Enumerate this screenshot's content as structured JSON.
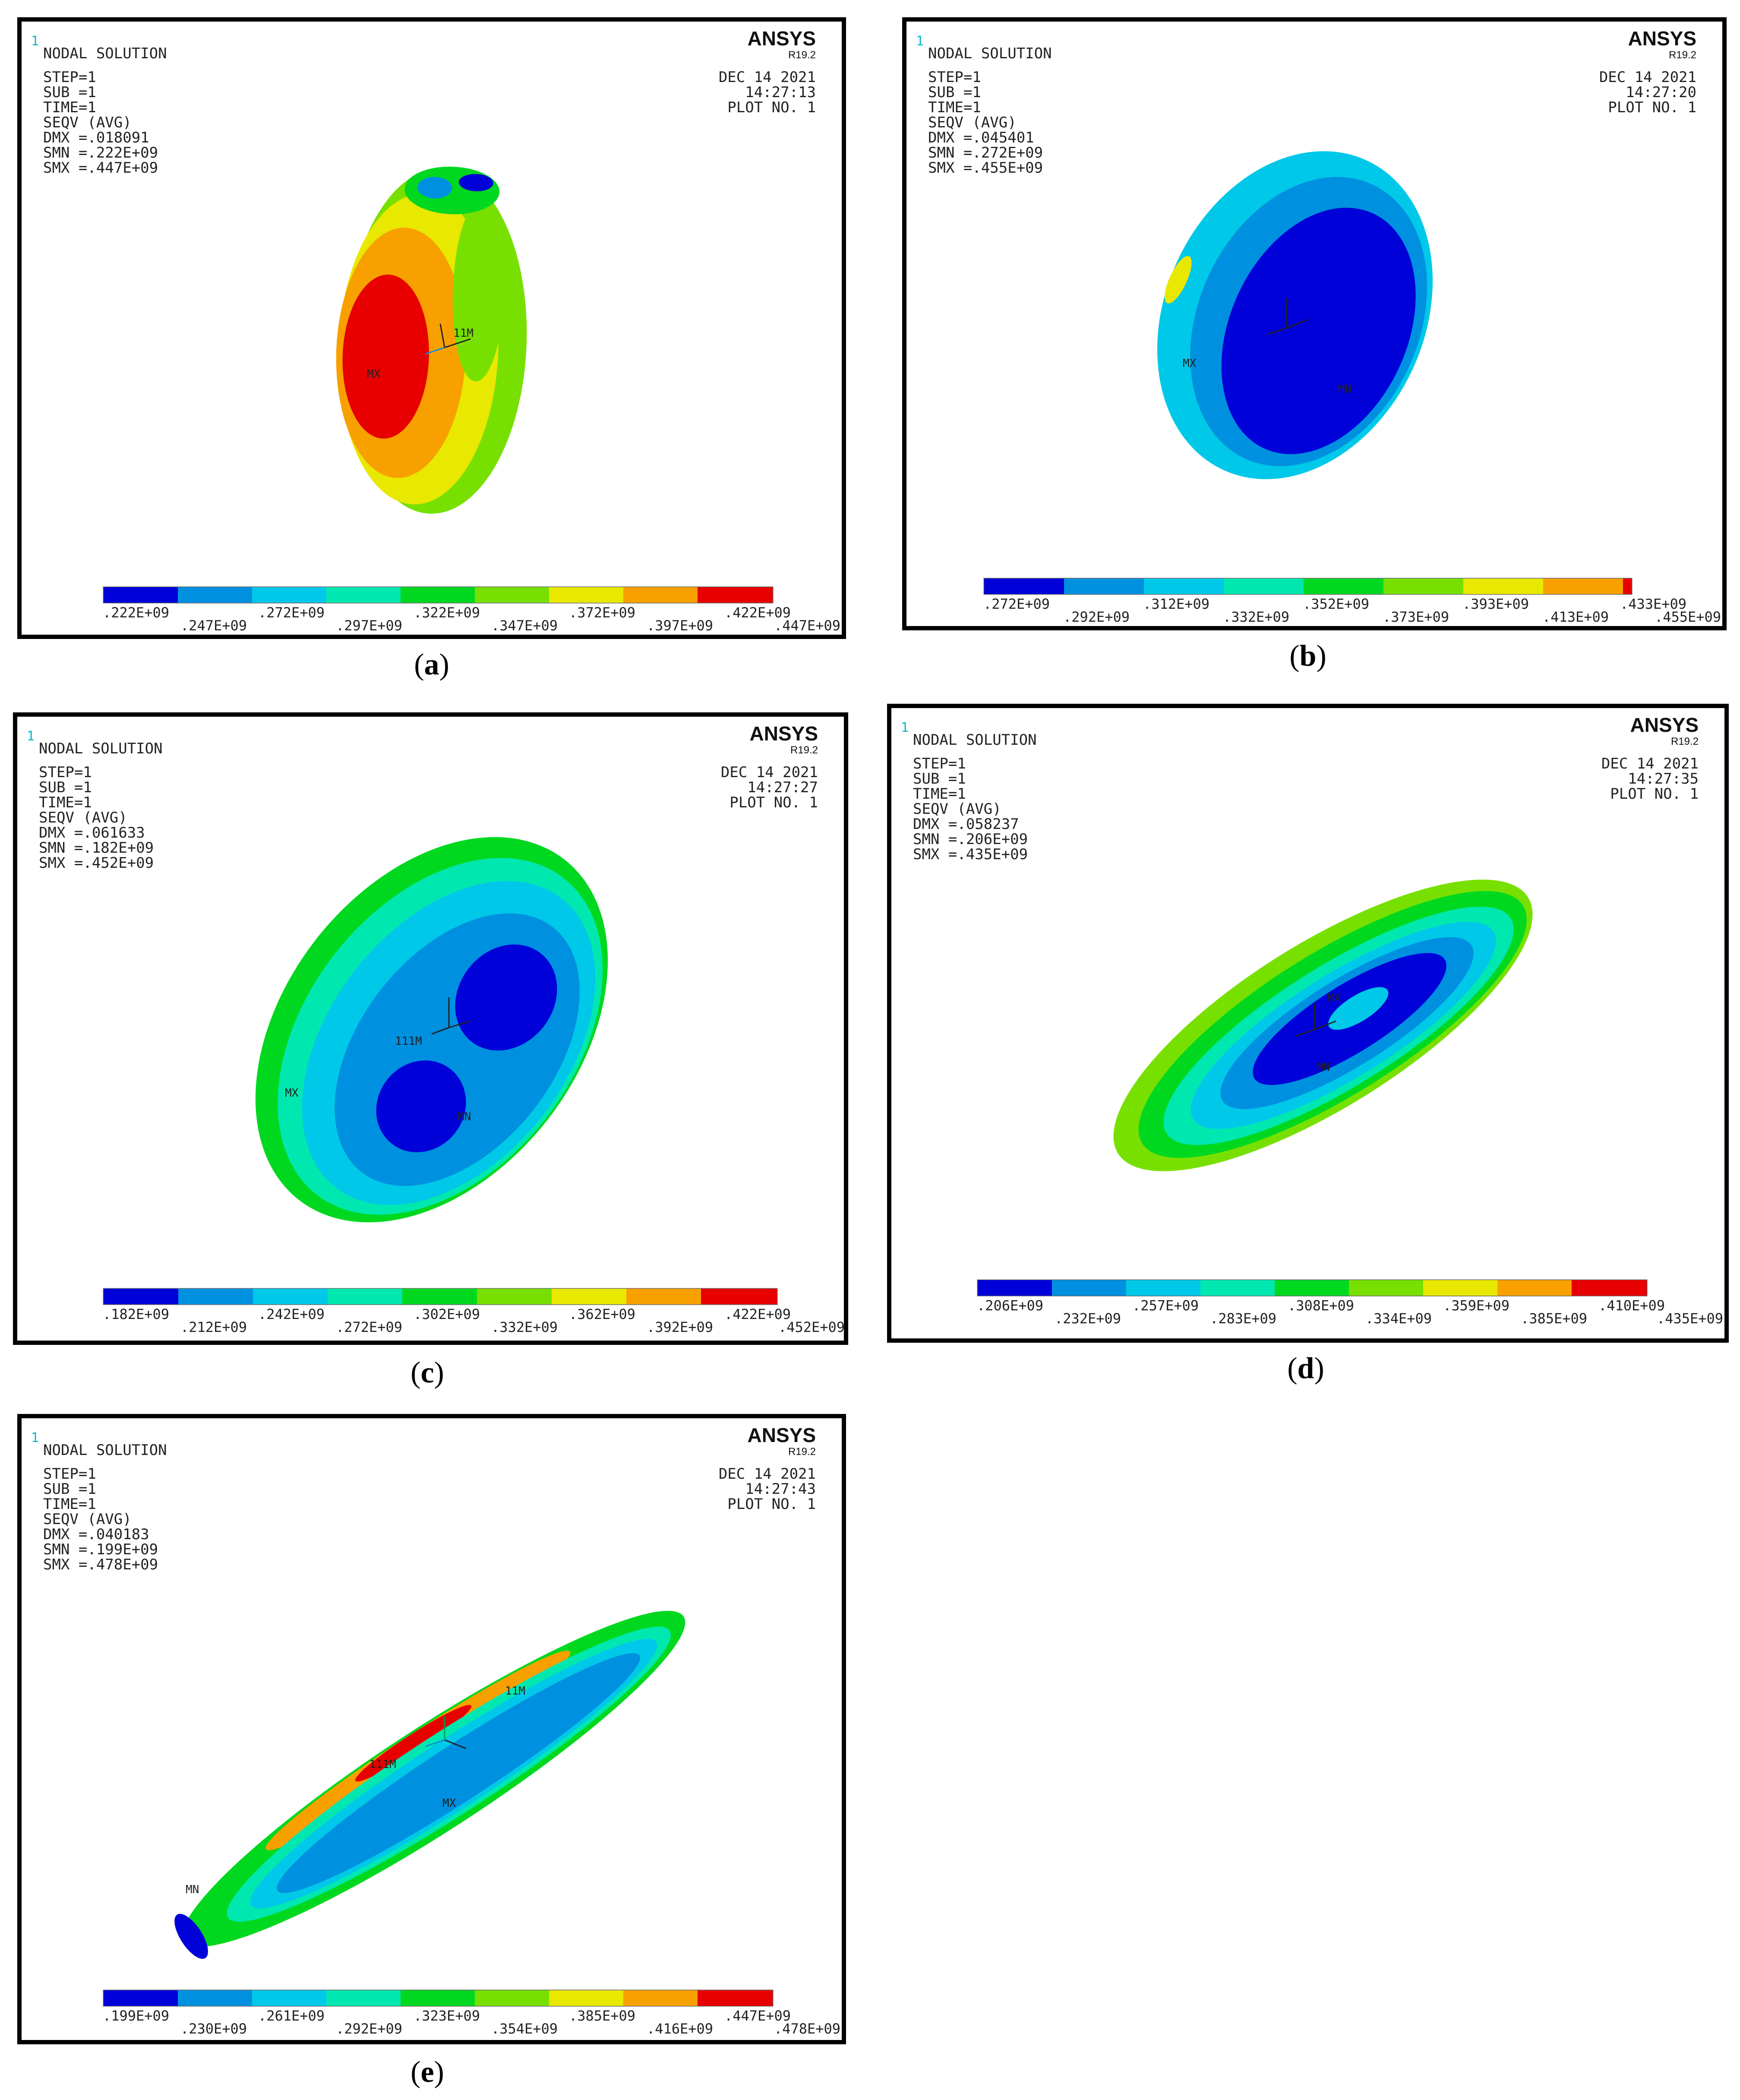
{
  "panels": [
    {
      "id": "a",
      "caption": "a",
      "header": {
        "title": "NODAL SOLUTION",
        "step": "STEP=1",
        "sub": "SUB =1",
        "time": "TIME=1",
        "seqv": "SEQV     (AVG)",
        "dmx": "DMX =.018091",
        "smn": "SMN =.222E+09",
        "smx": "SMX =.447E+09"
      },
      "brand": "ANSYS",
      "version": "R19.2",
      "date": "DEC 14 2021",
      "clock": "14:27:13",
      "plot_no": "PLOT NO.   1",
      "marker_labels": [
        "MX",
        "11M"
      ],
      "legend": [
        ".222E+09",
        ".247E+09",
        ".272E+09",
        ".297E+09",
        ".322E+09",
        ".347E+09",
        ".372E+09",
        ".397E+09",
        ".422E+09",
        ".447E+09"
      ]
    },
    {
      "id": "b",
      "caption": "b",
      "header": {
        "title": "NODAL SOLUTION",
        "step": "STEP=1",
        "sub": "SUB =1",
        "time": "TIME=1",
        "seqv": "SEQV     (AVG)",
        "dmx": "DMX =.045401",
        "smn": "SMN =.272E+09",
        "smx": "SMX =.455E+09"
      },
      "brand": "ANSYS",
      "version": "R19.2",
      "date": "DEC 14 2021",
      "clock": "14:27:20",
      "plot_no": "PLOT NO.   1",
      "marker_labels": [
        "MX",
        "MN"
      ],
      "legend": [
        ".272E+09",
        ".292E+09",
        ".312E+09",
        ".332E+09",
        ".352E+09",
        ".373E+09",
        ".393E+09",
        ".413E+09",
        ".433E+09",
        ".455E+09"
      ]
    },
    {
      "id": "c",
      "caption": "c",
      "header": {
        "title": "NODAL SOLUTION",
        "step": "STEP=1",
        "sub": "SUB =1",
        "time": "TIME=1",
        "seqv": "SEQV     (AVG)",
        "dmx": "DMX =.061633",
        "smn": "SMN =.182E+09",
        "smx": "SMX =.452E+09"
      },
      "brand": "ANSYS",
      "version": "R19.2",
      "date": "DEC 14 2021",
      "clock": "14:27:27",
      "plot_no": "PLOT NO.   1",
      "marker_labels": [
        "MX",
        "MN",
        "111M"
      ],
      "legend": [
        ".182E+09",
        ".212E+09",
        ".242E+09",
        ".272E+09",
        ".302E+09",
        ".332E+09",
        ".362E+09",
        ".392E+09",
        ".422E+09",
        ".452E+09"
      ]
    },
    {
      "id": "d",
      "caption": "d",
      "header": {
        "title": "NODAL SOLUTION",
        "step": "STEP=1",
        "sub": "SUB =1",
        "time": "TIME=1",
        "seqv": "SEQV     (AVG)",
        "dmx": "DMX =.058237",
        "smn": "SMN =.206E+09",
        "smx": "SMX =.435E+09"
      },
      "brand": "ANSYS",
      "version": "R19.2",
      "date": "DEC 14 2021",
      "clock": "14:27:35",
      "plot_no": "PLOT NO.   1",
      "marker_labels": [
        "MX",
        "MN"
      ],
      "legend": [
        ".206E+09",
        ".232E+09",
        ".257E+09",
        ".283E+09",
        ".308E+09",
        ".334E+09",
        ".359E+09",
        ".385E+09",
        ".410E+09",
        ".435E+09"
      ]
    },
    {
      "id": "e",
      "caption": "e",
      "header": {
        "title": "NODAL SOLUTION",
        "step": "STEP=1",
        "sub": "SUB =1",
        "time": "TIME=1",
        "seqv": "SEQV     (AVG)",
        "dmx": "DMX =.040183",
        "smn": "SMN =.199E+09",
        "smx": "SMX =.478E+09"
      },
      "brand": "ANSYS",
      "version": "R19.2",
      "date": "DEC 14 2021",
      "clock": "14:27:43",
      "plot_no": "PLOT NO.   1",
      "marker_labels": [
        "MX",
        "MN",
        "11M",
        "111M"
      ],
      "legend": [
        ".199E+09",
        ".230E+09",
        ".261E+09",
        ".292E+09",
        ".323E+09",
        ".354E+09",
        ".385E+09",
        ".416E+09",
        ".447E+09",
        ".478E+09"
      ]
    }
  ],
  "colors": {
    "contour_scale": [
      "#0000d8",
      "#0090e0",
      "#00c8e8",
      "#00e8b0",
      "#00d820",
      "#78e000",
      "#e8e800",
      "#f8a000",
      "#f06010",
      "#e80000"
    ],
    "frame": "#000000",
    "tag_cyan": "#00b8c8"
  }
}
